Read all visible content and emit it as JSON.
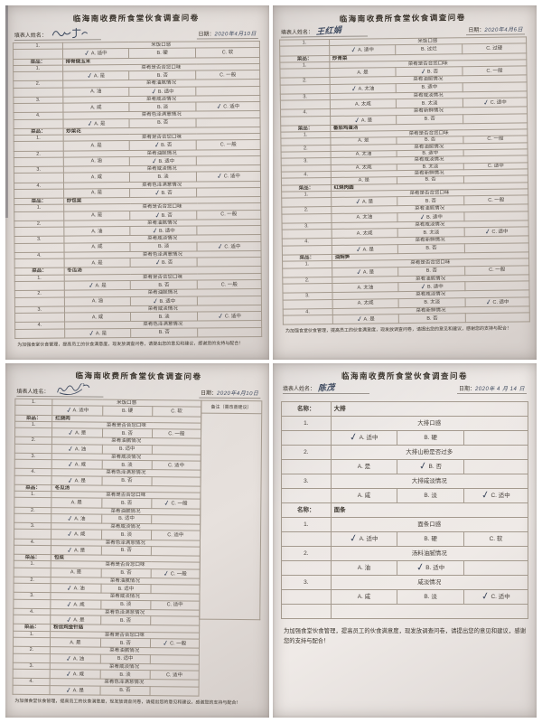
{
  "colors": {
    "paper": "#e2dcd8",
    "ink": "#3e4a5f",
    "print": "#46403a",
    "table_line": "#a49a8e",
    "background": "#ffffff"
  },
  "forms": [
    {
      "title": "临海南收费所食堂伙食调查问卷",
      "name_label": "填表人姓名：",
      "signature": "",
      "date_label": "日期：",
      "date_value": "2020年4月10日",
      "footer": "为加强食堂伙食管理，提高员工的伙食满意度，现发放调查问卷，请提出您的意见和建议，感谢您的支持与配合！",
      "rows": [
        {
          "kind": "q",
          "no": "1.",
          "text": "米饭口感",
          "opts": [
            "A. 适中",
            "B. 硬",
            "C. 软"
          ],
          "checked": 0
        },
        {
          "kind": "dish",
          "label": "菜品：",
          "name": "排骨烧玉米"
        },
        {
          "kind": "q",
          "no": "1.",
          "text": "菜肴是否合您口味",
          "opts": [
            "A. 是",
            "B. 否",
            "C. 一般"
          ],
          "checked": 0
        },
        {
          "kind": "q",
          "no": "2.",
          "text": "菜肴油腻情况",
          "opts": [
            "A. 油",
            "B. 适中"
          ],
          "checked": 1
        },
        {
          "kind": "q",
          "no": "3.",
          "text": "菜肴咸淡情况",
          "opts": [
            "A. 咸",
            "B. 淡",
            "C. 适中"
          ],
          "checked": 2
        },
        {
          "kind": "q",
          "no": "4.",
          "text": "菜肴色泽满意情况",
          "opts": [
            "A. 是",
            "B. 否"
          ],
          "checked": 0
        },
        {
          "kind": "dish",
          "label": "菜品：",
          "name": "炒菜花"
        },
        {
          "kind": "q",
          "no": "1.",
          "text": "菜肴是否合您口味",
          "opts": [
            "A. 是",
            "B. 否",
            "C. 一般"
          ],
          "checked": 1
        },
        {
          "kind": "q",
          "no": "2.",
          "text": "菜肴油腻情况",
          "opts": [
            "A. 油",
            "B. 适中"
          ],
          "checked": 1
        },
        {
          "kind": "q",
          "no": "3.",
          "text": "菜肴咸淡情况",
          "opts": [
            "A. 咸",
            "B. 淡",
            "C. 适中"
          ],
          "checked": 2
        },
        {
          "kind": "q",
          "no": "4.",
          "text": "菜肴色泽满意情况",
          "opts": [
            "A. 是",
            "B. 否"
          ],
          "checked": 1
        },
        {
          "kind": "dish",
          "label": "菜品：",
          "name": "炒包菜"
        },
        {
          "kind": "q",
          "no": "1.",
          "text": "菜肴是否合您口味",
          "opts": [
            "A. 是",
            "B. 否",
            "C. 一般"
          ],
          "checked": 1
        },
        {
          "kind": "q",
          "no": "2.",
          "text": "菜肴油腻情况",
          "opts": [
            "A. 油",
            "B. 适中"
          ],
          "checked": 1
        },
        {
          "kind": "q",
          "no": "3.",
          "text": "菜肴咸淡情况",
          "opts": [
            "A. 咸",
            "B. 淡",
            "C. 适中"
          ],
          "checked": 2
        },
        {
          "kind": "q",
          "no": "4.",
          "text": "菜肴色泽满意情况",
          "opts": [
            "A. 是",
            "B. 否"
          ],
          "checked": 1
        },
        {
          "kind": "dish",
          "label": "菜品：",
          "name": "冬瓜汤"
        },
        {
          "kind": "q",
          "no": "1.",
          "text": "菜肴是否合您口味",
          "opts": [
            "A. 是",
            "B. 否",
            "C. 一般"
          ],
          "checked": 0
        },
        {
          "kind": "q",
          "no": "2.",
          "text": "菜肴油腻情况",
          "opts": [
            "A. 油",
            "B. 适中"
          ],
          "checked": 1
        },
        {
          "kind": "q",
          "no": "3.",
          "text": "菜肴咸淡情况",
          "opts": [
            "A. 咸",
            "B. 淡",
            "C. 适中"
          ],
          "checked": 2
        },
        {
          "kind": "q",
          "no": "4.",
          "text": "菜肴色泽满意情况",
          "opts": [
            "A. 是",
            "B. 否"
          ],
          "checked": 0
        }
      ]
    },
    {
      "title": "临海南收费所食堂伙食调查问卷",
      "name_label": "填表人姓名：",
      "signature": "王红娟",
      "date_label": "日期：",
      "date_value": "2020年4月6日",
      "footer": "为加强食堂伙食管理，提高员工的伙食满意度，现发放调查问卷，请提出您的意见和建议，感谢您的支持与配合！",
      "rows": [
        {
          "kind": "q",
          "no": "1.",
          "text": "米饭口感",
          "opts": [
            "A. 适中",
            "B. 过烂",
            "C. 过硬"
          ],
          "checked": 0
        },
        {
          "kind": "dish",
          "label": "菜品：",
          "name": "炒青菜"
        },
        {
          "kind": "q",
          "no": "1.",
          "text": "菜肴是否合您口味",
          "opts": [
            "A. 是",
            "B. 否",
            "C. 一般"
          ],
          "checked": 1
        },
        {
          "kind": "q",
          "no": "2.",
          "text": "菜肴油腻情况",
          "opts": [
            "A. 太油",
            "B. 适中"
          ],
          "checked": 0
        },
        {
          "kind": "q",
          "no": "3.",
          "text": "菜肴咸淡情况",
          "opts": [
            "A. 太咸",
            "B. 太淡",
            "C. 适中"
          ],
          "checked": 2
        },
        {
          "kind": "q",
          "no": "4.",
          "text": "菜肴新鲜情况",
          "opts": [
            "A. 是",
            "B. 否"
          ],
          "checked": 0
        },
        {
          "kind": "dish",
          "label": "菜品：",
          "name": "番茄鸡蛋汤"
        },
        {
          "kind": "q",
          "no": "1.",
          "text": "菜肴是否合您口味",
          "opts": [
            "A. 是",
            "B. 否",
            "C. 一般"
          ],
          "checked": -1
        },
        {
          "kind": "q",
          "no": "2.",
          "text": "菜肴油腻情况",
          "opts": [
            "A. 太油",
            "B. 适中"
          ],
          "checked": -1
        },
        {
          "kind": "q",
          "no": "3.",
          "text": "菜肴咸淡情况",
          "opts": [
            "A. 太咸",
            "B. 太淡",
            "C. 适中"
          ],
          "checked": -1
        },
        {
          "kind": "q",
          "no": "4.",
          "text": "菜肴新鲜情况",
          "opts": [
            "A. 是",
            "B. 否"
          ],
          "checked": -1
        },
        {
          "kind": "dish",
          "label": "菜品：",
          "name": "红烧肉圆"
        },
        {
          "kind": "q",
          "no": "1.",
          "text": "菜肴是否合您口味",
          "opts": [
            "A. 是",
            "B. 否",
            "C. 一般"
          ],
          "checked": 0
        },
        {
          "kind": "q",
          "no": "2.",
          "text": "菜肴油腻情况",
          "opts": [
            "A. 太油",
            "B. 适中"
          ],
          "checked": 1
        },
        {
          "kind": "q",
          "no": "3.",
          "text": "菜肴咸淡情况",
          "opts": [
            "A. 太咸",
            "B. 太淡",
            "C. 适中"
          ],
          "checked": 2
        },
        {
          "kind": "q",
          "no": "4.",
          "text": "菜肴新鲜情况",
          "opts": [
            "A. 是",
            "B. 否"
          ],
          "checked": 0
        },
        {
          "kind": "dish",
          "label": "菜品：",
          "name": "油焖笋"
        },
        {
          "kind": "q",
          "no": "1.",
          "text": "菜肴是否合您口味",
          "opts": [
            "A. 是",
            "B. 否",
            "C. 一般"
          ],
          "checked": 0
        },
        {
          "kind": "q",
          "no": "2.",
          "text": "菜肴油腻情况",
          "opts": [
            "A. 太油",
            "B. 适中"
          ],
          "checked": 1
        },
        {
          "kind": "q",
          "no": "3.",
          "text": "菜肴咸淡情况",
          "opts": [
            "A. 太咸",
            "B. 太淡",
            "C. 适中"
          ],
          "checked": 2
        },
        {
          "kind": "q",
          "no": "4.",
          "text": "菜肴新鲜情况",
          "opts": [
            "A. 是",
            "B. 否"
          ],
          "checked": 0
        }
      ]
    },
    {
      "title": "临海南收费所食堂伙食调查问卷",
      "name_label": "填表人姓名：",
      "signature": "",
      "date_label": "日期：",
      "date_value": "2020年4月10日",
      "remark_header": "备注（需改善建议）",
      "footer": "为加强食堂伙食管理，提高员工的伙食满意度，现发放调查问卷，请提出您的意见和建议，感谢您的支持与配合！",
      "rows": [
        {
          "kind": "q",
          "no": "1.",
          "text": "米饭口感",
          "opts": [
            "A. 适中",
            "B. 硬",
            "C. 软"
          ],
          "checked": 0
        },
        {
          "kind": "dish",
          "label": "菜品：",
          "name": "红烧肉"
        },
        {
          "kind": "q",
          "no": "1.",
          "text": "菜肴是否合您口味",
          "opts": [
            "A. 是",
            "B. 否",
            "C. 一般"
          ],
          "checked": 0
        },
        {
          "kind": "q",
          "no": "2.",
          "text": "菜肴油腻情况",
          "opts": [
            "A. 油",
            "B. 适中"
          ],
          "checked": 0
        },
        {
          "kind": "q",
          "no": "3.",
          "text": "菜肴咸淡情况",
          "opts": [
            "A. 咸",
            "B. 淡",
            "C. 适中"
          ],
          "checked": 0
        },
        {
          "kind": "q",
          "no": "4.",
          "text": "菜肴色泽满意情况",
          "opts": [
            "A. 是",
            "B. 否"
          ],
          "checked": 0
        },
        {
          "kind": "dish",
          "label": "菜品：",
          "name": "冬瓜汤"
        },
        {
          "kind": "q",
          "no": "1.",
          "text": "菜肴是否合您口味",
          "opts": [
            "A. 是",
            "B. 否",
            "C. 一般"
          ],
          "checked": 2
        },
        {
          "kind": "q",
          "no": "2.",
          "text": "菜肴油腻情况",
          "opts": [
            "A. 油",
            "B. 适中"
          ],
          "checked": 0
        },
        {
          "kind": "q",
          "no": "3.",
          "text": "菜肴咸淡情况",
          "opts": [
            "A. 咸",
            "B. 淡",
            "C. 适中"
          ],
          "checked": 0
        },
        {
          "kind": "q",
          "no": "4.",
          "text": "菜肴色泽满意情况",
          "opts": [
            "A. 是",
            "B. 否"
          ],
          "checked": 0
        },
        {
          "kind": "dish",
          "label": "菜品：",
          "name": "包菜"
        },
        {
          "kind": "q",
          "no": "1.",
          "text": "菜肴是否合您口味",
          "opts": [
            "A. 是",
            "B. 否",
            "C. 一般"
          ],
          "checked": 2
        },
        {
          "kind": "q",
          "no": "2.",
          "text": "菜肴油腻情况",
          "opts": [
            "A. 油",
            "B. 适中"
          ],
          "checked": 0
        },
        {
          "kind": "q",
          "no": "3.",
          "text": "菜肴咸淡情况",
          "opts": [
            "A. 咸",
            "B. 淡",
            "C. 适中"
          ],
          "checked": 0
        },
        {
          "kind": "q",
          "no": "4.",
          "text": "菜肴色泽满意情况",
          "opts": [
            "A. 是",
            "B. 否"
          ],
          "checked": 0
        },
        {
          "kind": "dish",
          "label": "菜品：",
          "name": "粉丝炖金针菇"
        },
        {
          "kind": "q",
          "no": "1.",
          "text": "菜肴是否合您口味",
          "opts": [
            "A. 是",
            "B. 否",
            "C. 一般"
          ],
          "checked": 2
        },
        {
          "kind": "q",
          "no": "2.",
          "text": "菜肴油腻情况",
          "opts": [
            "A. 油",
            "B. 适中"
          ],
          "checked": 0
        },
        {
          "kind": "q",
          "no": "3.",
          "text": "菜肴咸淡情况",
          "opts": [
            "A. 咸",
            "B. 淡",
            "C. 适中"
          ],
          "checked": 0
        },
        {
          "kind": "q",
          "no": "4.",
          "text": "菜肴色泽满意情况",
          "opts": [
            "A. 是",
            "B. 否"
          ],
          "checked": 0
        }
      ]
    },
    {
      "title": "临海南收费所食堂伙食调查问卷",
      "name_label": "填表人姓名：",
      "signature": "陈茂",
      "date_label": "日期：",
      "date_value": "2020年 4 月 14 日",
      "footer": "为加强食堂伙食管理，提高员工的伙食满意度，现发放调查问卷，请提出您的意见和建议，感谢您的支持与配合！",
      "rows": [
        {
          "kind": "dish",
          "label": "名称：",
          "name": "大排"
        },
        {
          "kind": "q",
          "no": "1.",
          "text": "大排口感",
          "opts": [
            "A. 适中",
            "B. 硬"
          ],
          "checked": 0
        },
        {
          "kind": "q",
          "no": "2.",
          "text": "大排山粉是否过多",
          "opts": [
            "A. 是",
            "B. 否"
          ],
          "checked": 1
        },
        {
          "kind": "q",
          "no": "3.",
          "text": "大排咸淡情况",
          "opts": [
            "A. 咸",
            "B. 淡",
            "C. 适中"
          ],
          "checked": 2
        },
        {
          "kind": "dish",
          "label": "名称：",
          "name": "面条"
        },
        {
          "kind": "q",
          "no": "1.",
          "text": "面条口感",
          "opts": [
            "A. 适中",
            "B. 硬",
            "C. 软"
          ],
          "checked": 0
        },
        {
          "kind": "q",
          "no": "2.",
          "text": "汤料油腻情况",
          "opts": [
            "A. 油",
            "B. 适中"
          ],
          "checked": 1
        },
        {
          "kind": "q",
          "no": "3.",
          "text": "咸淡情况",
          "opts": [
            "A. 咸",
            "B. 淡",
            "C. 适中"
          ],
          "checked": 2
        },
        {
          "kind": "empty"
        }
      ]
    }
  ]
}
